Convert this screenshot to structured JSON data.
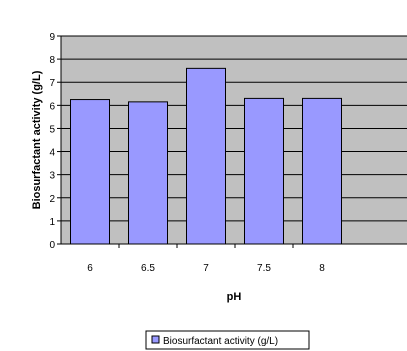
{
  "chart_data": {
    "type": "bar",
    "categories": [
      "6",
      "6.5",
      "7",
      "7.5",
      "8"
    ],
    "series": [
      {
        "name": "Biosurfactant activity (g/L)",
        "values": [
          6.25,
          6.15,
          7.6,
          6.3,
          6.3
        ]
      }
    ],
    "xlabel": "pH",
    "ylabel": "Biosurfactant activity (g/L)",
    "ylim": [
      0,
      9
    ],
    "yticks": [
      "0",
      "1",
      "2",
      "3",
      "4",
      "5",
      "6",
      "7",
      "8",
      "9"
    ],
    "grid": true,
    "legend_position": "bottom",
    "colors": {
      "plot_background": "#c0c0c0",
      "bar_fill": "#9999ff",
      "bar_stroke": "#000000",
      "gridline": "#000000"
    }
  }
}
